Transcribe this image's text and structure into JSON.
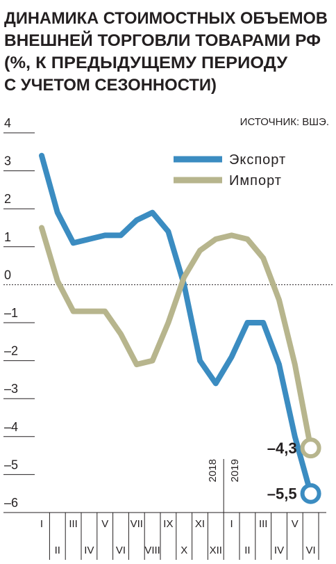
{
  "chart_data": {
    "type": "line",
    "title": [
      "ДИНАМИКА СТОИМОСТНЫХ ОБЪЕМОВ",
      "ВНЕШНЕЙ ТОРГОВЛИ ТОВАРАМИ РФ",
      "(%, К ПРЕДЫДУЩЕМУ ПЕРИОДУ",
      "С УЧЕТОМ СЕЗОННОСТИ)"
    ],
    "source": "ИСТОЧНИК: ВШЭ.",
    "categories": [
      "I",
      "II",
      "III",
      "IV",
      "V",
      "VI",
      "VII",
      "VIII",
      "IX",
      "X",
      "XI",
      "XII",
      "I",
      "II",
      "III",
      "IV",
      "V",
      "VI"
    ],
    "year_labels": [
      "2018",
      "2019"
    ],
    "series": [
      {
        "name": "Экспорт",
        "color": "#3b8cc1",
        "values": [
          3.4,
          1.9,
          1.1,
          1.2,
          1.3,
          1.3,
          1.7,
          1.9,
          1.4,
          0.0,
          -2.0,
          -2.6,
          -1.9,
          -1.0,
          -1.0,
          -2.1,
          -4.0,
          -5.5
        ],
        "value_labels": [
          null,
          null,
          null,
          null,
          null,
          null,
          null,
          null,
          null,
          null,
          null,
          null,
          null,
          null,
          null,
          null,
          null,
          "–5,5"
        ]
      },
      {
        "name": "Импорт",
        "color": "#b7b58d",
        "values": [
          1.5,
          0.1,
          -0.7,
          -0.7,
          -0.7,
          -1.3,
          -2.1,
          -2.0,
          -1.0,
          0.2,
          0.9,
          1.2,
          1.3,
          1.2,
          0.7,
          -0.4,
          -2.1,
          -4.3
        ],
        "value_labels": [
          null,
          null,
          null,
          null,
          null,
          null,
          null,
          null,
          null,
          null,
          null,
          null,
          null,
          null,
          null,
          null,
          null,
          "–4,3"
        ]
      }
    ],
    "ylim": [
      -6,
      4
    ],
    "yticks": [
      4,
      3,
      2,
      1,
      0,
      {
        "value": -1,
        "label": "–1"
      },
      {
        "value": -2,
        "label": "–2"
      },
      {
        "value": -3,
        "label": "–3"
      },
      {
        "value": -4,
        "label": "–4"
      },
      {
        "value": -5,
        "label": "–5"
      },
      {
        "value": -6,
        "label": "–6"
      }
    ]
  }
}
